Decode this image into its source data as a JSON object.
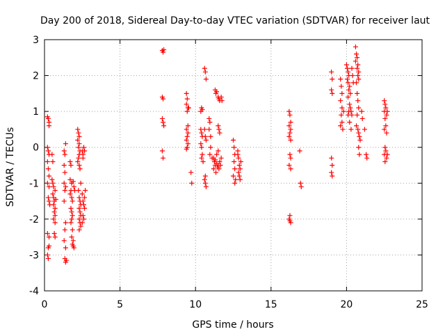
{
  "chart_data": {
    "type": "scatter",
    "title": "Day 200 of 2018, Sidereal Day-to-day VTEC variation (SDTVAR) for receiver laut",
    "xlabel": "GPS time / hours",
    "ylabel": "SDTVAR / TECUs",
    "xlim": [
      0,
      25
    ],
    "ylim": [
      -4,
      3
    ],
    "xticks": [
      "0",
      "5",
      "10",
      "15",
      "20",
      "25"
    ],
    "yticks": [
      "-4",
      "-3",
      "-2",
      "-1",
      "0",
      "1",
      "2",
      "3"
    ],
    "grid": true,
    "marker": "+",
    "color": "#ff0000",
    "series": [
      {
        "name": "SDTVAR",
        "points": [
          [
            0.2,
            0.85
          ],
          [
            0.25,
            0.8
          ],
          [
            0.3,
            0.7
          ],
          [
            0.3,
            0.6
          ],
          [
            0.2,
            0.0
          ],
          [
            0.25,
            -0.1
          ],
          [
            0.3,
            -0.2
          ],
          [
            0.2,
            -0.4
          ],
          [
            0.25,
            -0.6
          ],
          [
            0.3,
            -0.8
          ],
          [
            0.2,
            -1.0
          ],
          [
            0.3,
            -1.1
          ],
          [
            0.25,
            -1.4
          ],
          [
            0.3,
            -1.5
          ],
          [
            0.35,
            -1.6
          ],
          [
            0.2,
            -2.4
          ],
          [
            0.3,
            -2.5
          ],
          [
            0.25,
            -2.8
          ],
          [
            0.3,
            -2.75
          ],
          [
            0.2,
            -3.0
          ],
          [
            0.25,
            -3.1
          ],
          [
            0.5,
            -0.9
          ],
          [
            0.55,
            -1.0
          ],
          [
            0.6,
            -1.1
          ],
          [
            0.55,
            -1.3
          ],
          [
            0.6,
            -1.4
          ],
          [
            0.65,
            -1.5
          ],
          [
            0.6,
            -1.6
          ],
          [
            0.7,
            -1.7
          ],
          [
            0.65,
            -1.8
          ],
          [
            0.7,
            -1.9
          ],
          [
            0.6,
            -2.0
          ],
          [
            0.7,
            -2.1
          ],
          [
            0.65,
            -2.4
          ],
          [
            0.7,
            -2.5
          ],
          [
            0.75,
            -1.45
          ],
          [
            0.7,
            -1.2
          ],
          [
            0.5,
            -0.2
          ],
          [
            0.55,
            -0.4
          ],
          [
            1.3,
            -0.1
          ],
          [
            1.35,
            -0.2
          ],
          [
            1.4,
            0.1
          ],
          [
            1.3,
            -0.5
          ],
          [
            1.35,
            -0.7
          ],
          [
            1.3,
            -1.0
          ],
          [
            1.4,
            -1.1
          ],
          [
            1.35,
            -1.2
          ],
          [
            1.3,
            -1.5
          ],
          [
            1.4,
            -2.1
          ],
          [
            1.35,
            -2.3
          ],
          [
            1.3,
            -2.6
          ],
          [
            1.4,
            -2.8
          ],
          [
            1.35,
            -3.1
          ],
          [
            1.4,
            -3.2
          ],
          [
            1.45,
            -3.15
          ],
          [
            1.7,
            -0.4
          ],
          [
            1.75,
            -0.5
          ],
          [
            1.7,
            -0.9
          ],
          [
            1.8,
            -1.0
          ],
          [
            1.75,
            -1.2
          ],
          [
            1.7,
            -1.3
          ],
          [
            1.8,
            -1.4
          ],
          [
            1.85,
            -1.5
          ],
          [
            1.75,
            -1.7
          ],
          [
            1.8,
            -1.8
          ],
          [
            1.85,
            -1.9
          ],
          [
            1.8,
            -2.0
          ],
          [
            1.75,
            -2.1
          ],
          [
            1.85,
            -2.3
          ],
          [
            1.8,
            -2.5
          ],
          [
            1.9,
            -2.6
          ],
          [
            1.85,
            -2.7
          ],
          [
            1.9,
            -2.75
          ],
          [
            1.95,
            -2.8
          ],
          [
            1.8,
            -1.0
          ],
          [
            1.9,
            -0.95
          ],
          [
            1.95,
            -1.1
          ],
          [
            2.0,
            -1.2
          ],
          [
            2.2,
            0.5
          ],
          [
            2.25,
            0.4
          ],
          [
            2.3,
            0.3
          ],
          [
            2.2,
            0.2
          ],
          [
            2.3,
            0.1
          ],
          [
            2.25,
            0.0
          ],
          [
            2.35,
            -0.1
          ],
          [
            2.3,
            -0.2
          ],
          [
            2.25,
            -0.3
          ],
          [
            2.2,
            -0.4
          ],
          [
            2.3,
            -0.5
          ],
          [
            2.35,
            -0.6
          ],
          [
            2.25,
            -1.2
          ],
          [
            2.3,
            -1.4
          ],
          [
            2.35,
            -1.5
          ],
          [
            2.4,
            -1.6
          ],
          [
            2.3,
            -1.7
          ],
          [
            2.35,
            -1.8
          ],
          [
            2.4,
            -1.9
          ],
          [
            2.3,
            -2.0
          ],
          [
            2.35,
            -2.1
          ],
          [
            2.4,
            -2.2
          ],
          [
            2.3,
            -2.3
          ],
          [
            2.4,
            -1.0
          ],
          [
            2.5,
            -0.1
          ],
          [
            2.55,
            -0.2
          ],
          [
            2.6,
            0.0
          ],
          [
            2.65,
            -0.1
          ],
          [
            2.5,
            -1.3
          ],
          [
            2.55,
            -1.5
          ],
          [
            2.6,
            -1.6
          ],
          [
            2.65,
            -1.7
          ],
          [
            2.55,
            -1.9
          ],
          [
            2.6,
            -2.0
          ],
          [
            2.5,
            -2.1
          ],
          [
            2.65,
            -1.4
          ],
          [
            2.7,
            -1.2
          ],
          [
            2.55,
            -0.3
          ],
          [
            7.8,
            2.7
          ],
          [
            7.85,
            2.65
          ],
          [
            7.9,
            2.72
          ],
          [
            7.8,
            1.4
          ],
          [
            7.85,
            1.35
          ],
          [
            7.8,
            0.8
          ],
          [
            7.85,
            0.7
          ],
          [
            7.9,
            0.6
          ],
          [
            7.8,
            -0.1
          ],
          [
            7.85,
            -0.3
          ],
          [
            9.4,
            1.5
          ],
          [
            9.45,
            1.35
          ],
          [
            9.4,
            1.2
          ],
          [
            9.5,
            1.1
          ],
          [
            9.45,
            1.0
          ],
          [
            9.4,
            0.5
          ],
          [
            9.5,
            0.4
          ],
          [
            9.45,
            0.3
          ],
          [
            9.4,
            0.2
          ],
          [
            9.5,
            0.1
          ],
          [
            9.45,
            0.0
          ],
          [
            9.4,
            -0.05
          ],
          [
            9.5,
            0.6
          ],
          [
            9.55,
            1.1
          ],
          [
            9.7,
            -0.7
          ],
          [
            9.75,
            -1.0
          ],
          [
            10.35,
            1.0
          ],
          [
            10.4,
            1.1
          ],
          [
            10.45,
            1.05
          ],
          [
            10.35,
            0.5
          ],
          [
            10.4,
            0.4
          ],
          [
            10.45,
            0.3
          ],
          [
            10.35,
            0.1
          ],
          [
            10.4,
            0.0
          ],
          [
            10.45,
            -0.2
          ],
          [
            10.4,
            -0.3
          ],
          [
            10.5,
            -0.4
          ],
          [
            10.6,
            2.2
          ],
          [
            10.65,
            2.1
          ],
          [
            10.7,
            1.9
          ],
          [
            10.6,
            0.5
          ],
          [
            10.65,
            0.3
          ],
          [
            10.7,
            0.2
          ],
          [
            10.65,
            -0.8
          ],
          [
            10.6,
            -0.9
          ],
          [
            10.7,
            -1.1
          ],
          [
            10.65,
            -1.0
          ],
          [
            10.9,
            0.8
          ],
          [
            10.95,
            0.7
          ],
          [
            10.9,
            0.5
          ],
          [
            11.0,
            0.3
          ],
          [
            11.0,
            0.0
          ],
          [
            10.95,
            -0.2
          ],
          [
            11.1,
            -0.3
          ],
          [
            11.2,
            -0.3
          ],
          [
            11.25,
            -0.4
          ],
          [
            11.3,
            -0.5
          ],
          [
            11.2,
            -0.6
          ],
          [
            11.35,
            -0.7
          ],
          [
            11.3,
            -0.35
          ],
          [
            11.4,
            -0.45
          ],
          [
            11.45,
            -0.55
          ],
          [
            11.5,
            -0.5
          ],
          [
            11.55,
            -0.6
          ],
          [
            11.4,
            -0.2
          ],
          [
            11.5,
            -0.1
          ],
          [
            11.6,
            -0.4
          ],
          [
            11.65,
            -0.5
          ],
          [
            11.7,
            -0.3
          ],
          [
            11.3,
            1.6
          ],
          [
            11.35,
            1.5
          ],
          [
            11.4,
            1.55
          ],
          [
            11.5,
            1.4
          ],
          [
            11.55,
            1.35
          ],
          [
            11.6,
            1.3
          ],
          [
            11.7,
            1.4
          ],
          [
            11.75,
            1.3
          ],
          [
            11.5,
            0.6
          ],
          [
            11.55,
            0.5
          ],
          [
            11.6,
            0.4
          ],
          [
            12.5,
            0.2
          ],
          [
            12.55,
            0.0
          ],
          [
            12.6,
            -0.2
          ],
          [
            12.55,
            -0.4
          ],
          [
            12.6,
            -0.6
          ],
          [
            12.5,
            -0.8
          ],
          [
            12.65,
            -0.9
          ],
          [
            12.6,
            -1.0
          ],
          [
            12.8,
            -0.1
          ],
          [
            12.85,
            -0.3
          ],
          [
            12.9,
            -0.5
          ],
          [
            12.95,
            -0.6
          ],
          [
            12.85,
            -0.7
          ],
          [
            12.9,
            -0.8
          ],
          [
            12.95,
            -0.9
          ],
          [
            13.0,
            -0.4
          ],
          [
            12.8,
            -0.2
          ],
          [
            16.2,
            1.0
          ],
          [
            16.25,
            0.9
          ],
          [
            16.3,
            0.7
          ],
          [
            16.2,
            0.6
          ],
          [
            16.3,
            0.5
          ],
          [
            16.25,
            0.4
          ],
          [
            16.2,
            0.3
          ],
          [
            16.3,
            0.2
          ],
          [
            16.25,
            -0.2
          ],
          [
            16.3,
            -0.3
          ],
          [
            16.2,
            -0.5
          ],
          [
            16.3,
            -0.6
          ],
          [
            16.25,
            -1.9
          ],
          [
            16.2,
            -2.0
          ],
          [
            16.3,
            -2.1
          ],
          [
            16.25,
            -2.05
          ],
          [
            16.9,
            -0.1
          ],
          [
            16.95,
            -1.0
          ],
          [
            17.0,
            -1.1
          ],
          [
            19.0,
            2.1
          ],
          [
            19.05,
            1.9
          ],
          [
            19.0,
            1.6
          ],
          [
            19.05,
            1.5
          ],
          [
            19.0,
            -0.3
          ],
          [
            19.05,
            -0.5
          ],
          [
            19.0,
            -0.7
          ],
          [
            19.05,
            -0.8
          ],
          [
            19.6,
            1.9
          ],
          [
            19.65,
            1.7
          ],
          [
            19.7,
            1.5
          ],
          [
            19.6,
            1.3
          ],
          [
            19.7,
            1.1
          ],
          [
            19.65,
            0.9
          ],
          [
            19.7,
            0.7
          ],
          [
            19.6,
            0.6
          ],
          [
            19.75,
            0.5
          ],
          [
            19.8,
            1.0
          ],
          [
            20.0,
            2.3
          ],
          [
            20.05,
            2.2
          ],
          [
            20.1,
            2.1
          ],
          [
            20.15,
            2.0
          ],
          [
            20.05,
            1.9
          ],
          [
            20.1,
            1.8
          ],
          [
            20.2,
            1.7
          ],
          [
            20.15,
            1.6
          ],
          [
            20.25,
            1.5
          ],
          [
            20.1,
            1.4
          ],
          [
            20.2,
            1.2
          ],
          [
            20.25,
            1.1
          ],
          [
            20.15,
            1.0
          ],
          [
            20.1,
            0.9
          ],
          [
            20.2,
            0.7
          ],
          [
            20.3,
            0.5
          ],
          [
            20.35,
            2.2
          ],
          [
            20.4,
            2.0
          ],
          [
            20.45,
            1.8
          ],
          [
            20.3,
            1.0
          ],
          [
            20.35,
            0.9
          ],
          [
            20.6,
            2.8
          ],
          [
            20.65,
            2.6
          ],
          [
            20.7,
            2.5
          ],
          [
            20.6,
            2.4
          ],
          [
            20.75,
            2.3
          ],
          [
            20.7,
            2.2
          ],
          [
            20.8,
            2.1
          ],
          [
            20.75,
            2.0
          ],
          [
            20.8,
            1.9
          ],
          [
            20.65,
            1.8
          ],
          [
            20.7,
            1.5
          ],
          [
            20.75,
            1.3
          ],
          [
            20.8,
            1.1
          ],
          [
            20.7,
            0.9
          ],
          [
            20.65,
            0.6
          ],
          [
            20.75,
            0.5
          ],
          [
            20.8,
            0.4
          ],
          [
            20.85,
            0.3
          ],
          [
            20.9,
            0.2
          ],
          [
            20.8,
            0.0
          ],
          [
            20.85,
            -0.2
          ],
          [
            21.0,
            1.0
          ],
          [
            21.05,
            0.8
          ],
          [
            21.2,
            0.5
          ],
          [
            21.3,
            -0.2
          ],
          [
            21.35,
            -0.3
          ],
          [
            22.5,
            1.3
          ],
          [
            22.55,
            1.2
          ],
          [
            22.6,
            1.1
          ],
          [
            22.5,
            1.0
          ],
          [
            22.65,
            0.9
          ],
          [
            22.55,
            0.8
          ],
          [
            22.6,
            0.6
          ],
          [
            22.5,
            0.5
          ],
          [
            22.65,
            0.4
          ],
          [
            22.55,
            0.0
          ],
          [
            22.6,
            -0.1
          ],
          [
            22.5,
            -0.2
          ],
          [
            22.65,
            -0.3
          ],
          [
            22.55,
            -0.4
          ],
          [
            22.7,
            -0.2
          ],
          [
            22.7,
            1.0
          ]
        ]
      }
    ]
  }
}
